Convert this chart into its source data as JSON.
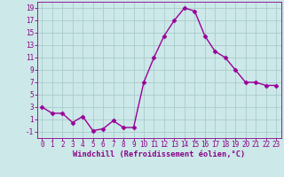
{
  "x": [
    0,
    1,
    2,
    3,
    4,
    5,
    6,
    7,
    8,
    9,
    10,
    11,
    12,
    13,
    14,
    15,
    16,
    17,
    18,
    19,
    20,
    21,
    22,
    23
  ],
  "y": [
    3,
    2,
    2,
    0.5,
    1.5,
    -0.8,
    -0.5,
    0.8,
    -0.3,
    -0.3,
    7,
    11,
    14.5,
    17,
    19,
    18.5,
    14.5,
    12,
    11,
    9,
    7,
    7,
    6.5,
    6.5
  ],
  "line_color": "#990099",
  "marker": "D",
  "marker_size": 2.5,
  "bg_color": "#cce8e8",
  "grid_color": "#aacccc",
  "xlabel": "Windchill (Refroidissement éolien,°C)",
  "ylim": [
    -2,
    20
  ],
  "xlim": [
    -0.5,
    23.5
  ],
  "yticks": [
    -1,
    1,
    3,
    5,
    7,
    9,
    11,
    13,
    15,
    17,
    19
  ],
  "xticks": [
    0,
    1,
    2,
    3,
    4,
    5,
    6,
    7,
    8,
    9,
    10,
    11,
    12,
    13,
    14,
    15,
    16,
    17,
    18,
    19,
    20,
    21,
    22,
    23
  ],
  "tick_color": "#880088",
  "label_color": "#880088",
  "font_size_ticks": 5.5,
  "font_size_xlabel": 6.2,
  "linewidth": 1.0
}
